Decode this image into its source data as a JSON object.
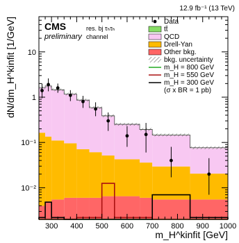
{
  "chart_data": {
    "type": "bar",
    "lumi_label": "12.9 fb⁻¹ (13 TeV)",
    "experiment": "CMS",
    "status": "preliminary",
    "category_label": "res. bj τₕτₕ",
    "category_label_2": "channel",
    "xlabel": "m_H^kinfit [GeV]",
    "ylabel": "dN/dm_H^kinfit [1/GeV]",
    "xlim": [
      250,
      1000
    ],
    "ylim": [
      0.002,
      60
    ],
    "y_scale": "log",
    "x_tick_labels": [
      "300",
      "400",
      "500",
      "600",
      "700",
      "800",
      "900",
      "1000"
    ],
    "y_tick_labels": [
      "10⁻²",
      "10⁻¹",
      "1",
      "10"
    ],
    "bin_edges": [
      250,
      275,
      300,
      350,
      400,
      450,
      500,
      550,
      650,
      700,
      850,
      1000
    ],
    "stack": [
      {
        "name": "Other bkg.",
        "color": "#ff6666",
        "values": [
          0.004,
          0.005,
          0.0055,
          0.006,
          0.006,
          0.006,
          0.0065,
          0.0065,
          0.006,
          0.0055,
          0.0055
        ]
      },
      {
        "name": "Drell-Yan",
        "color": "#ffbb00",
        "values": [
          0.16,
          0.13,
          0.105,
          0.09,
          0.065,
          0.055,
          0.045,
          0.036,
          0.03,
          0.024,
          0.015
        ]
      },
      {
        "name": "QCD",
        "color": "#f8c8f2",
        "values": [
          1.42,
          1.62,
          1.33,
          1.06,
          0.78,
          0.52,
          0.33,
          0.205,
          0.155,
          0.115,
          0.055
        ]
      },
      {
        "name": "tt̄",
        "color": "#88dd66",
        "values": [
          0.02,
          0.02,
          0.016,
          0.014,
          0.011,
          0.008,
          0.006,
          0.004,
          0.003,
          0.002,
          0.001
        ]
      }
    ],
    "data_points": {
      "name": "Data",
      "x": [
        262.5,
        287.5,
        325,
        375,
        425,
        475,
        525,
        600,
        675,
        775,
        925
      ],
      "y": [
        1.4,
        1.9,
        1.6,
        1.1,
        0.8,
        0.55,
        0.3,
        0.14,
        0.15,
        0.04,
        0.02
      ],
      "err_low": [
        0.45,
        0.55,
        0.35,
        0.28,
        0.22,
        0.17,
        0.12,
        0.06,
        0.09,
        0.023,
        0.013
      ],
      "err_high": [
        0.6,
        0.7,
        0.4,
        0.33,
        0.27,
        0.22,
        0.16,
        0.09,
        0.12,
        0.04,
        0.025
      ]
    },
    "signals": [
      {
        "name": "m_H = 800 GeV",
        "color": "#22aa22",
        "values": [
          0.0001,
          0.0001,
          0.0001,
          0.0001,
          0.0001,
          0.0001,
          0.0001,
          0.0001,
          0.0001,
          0.0002,
          0.0002
        ]
      },
      {
        "name": "m_H = 550 GeV",
        "color": "#aa1111",
        "values": [
          0.0001,
          0.0001,
          0.0001,
          0.0001,
          0.0022,
          0.0022,
          0.0125,
          0.0022,
          0.0022,
          0.0005,
          0.0003
        ]
      },
      {
        "name": "m_H = 300 GeV",
        "color": "#000000",
        "values": [
          0.0022,
          0.0048,
          0.0022,
          0.0001,
          0.0001,
          0.0001,
          0.0001,
          0.0001,
          0.0001,
          0.007,
          0.0022
        ]
      }
    ],
    "legend": [
      {
        "label": "Data",
        "kind": "marker"
      },
      {
        "label": "tt̄",
        "kind": "fill",
        "color": "#88dd66"
      },
      {
        "label": "QCD",
        "kind": "fill",
        "color": "#f8c8f2"
      },
      {
        "label": "Drell-Yan",
        "kind": "fill",
        "color": "#ffbb00"
      },
      {
        "label": "Other bkg.",
        "kind": "fill",
        "color": "#ff6666"
      },
      {
        "label": "bkg. uncertainty",
        "kind": "hatch"
      },
      {
        "label": "m_H = 800 GeV",
        "kind": "line",
        "color": "#22aa22"
      },
      {
        "label": "m_H = 550 GeV",
        "kind": "line",
        "color": "#aa1111"
      },
      {
        "label": "m_H = 300 GeV",
        "kind": "line",
        "color": "#000000"
      },
      {
        "label": "(σ x BR = 1 pb)",
        "kind": "none"
      }
    ],
    "legend_position": "top-right"
  }
}
